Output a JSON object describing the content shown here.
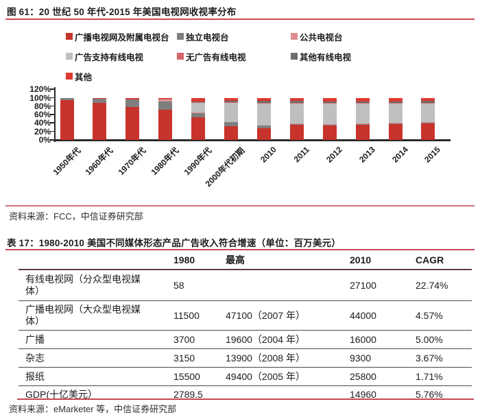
{
  "figure": {
    "source": "资料来源：FCC，中信证券研究部"
  },
  "chart_data": {
    "type": "bar",
    "bar_mode": "stacked",
    "title": "图 61：20 世纪 50 年代-2015 年美国电视网收视率分布",
    "xlabel": "",
    "ylabel": "",
    "unit": "%",
    "ylim": [
      0,
      120
    ],
    "yticks": [
      "0%",
      "20%",
      "40%",
      "60%",
      "80%",
      "100%",
      "120%"
    ],
    "grid": false,
    "legend_position": "top-left",
    "categories": [
      "1950年代",
      "1960年代",
      "1970年代",
      "1980年代",
      "1990年代",
      "2000年代初期",
      "2010",
      "2011",
      "2012",
      "2013",
      "2014",
      "2015"
    ],
    "series": [
      {
        "name": "广播电视网及附属电视台",
        "color": "#C8332C",
        "values": [
          94,
          87,
          78,
          71,
          54,
          33,
          27,
          36,
          35,
          36,
          38,
          40
        ]
      },
      {
        "name": "独立电视台",
        "color": "#7F7F7F",
        "values": [
          6,
          11,
          18,
          20,
          9,
          9,
          7,
          1,
          1,
          1,
          1,
          1
        ]
      },
      {
        "name": "公共电视台",
        "color": "#E08E92",
        "values": [
          0,
          0,
          0,
          3,
          2,
          0,
          0,
          2,
          2,
          2,
          2,
          2
        ]
      },
      {
        "name": "广告支持有线电视",
        "color": "#C0BFBF",
        "values": [
          0,
          0,
          0,
          2,
          22,
          46,
          52,
          47,
          48,
          47,
          45,
          43
        ]
      },
      {
        "name": "无广告有线电视",
        "color": "#D4666B",
        "values": [
          0,
          0,
          0,
          0,
          2,
          2,
          2,
          2,
          2,
          2,
          2,
          2
        ]
      },
      {
        "name": "其他有线电视",
        "color": "#6E6E6E",
        "values": [
          0,
          0,
          0,
          0,
          2,
          3,
          4,
          4,
          3,
          3,
          3,
          4
        ]
      },
      {
        "name": "其他",
        "color": "#DC3A31",
        "values": [
          0,
          2,
          4,
          4,
          9,
          7,
          8,
          8,
          9,
          9,
          9,
          8
        ]
      }
    ]
  },
  "table": {
    "title": "表 17：1980-2010 美国不同媒体形态产品广告收入符合增速（单位：百万美元）",
    "columns": [
      "",
      "1980",
      "最高",
      "2010",
      "CAGR"
    ],
    "rows": [
      [
        "有线电视网（分众型电视媒体）",
        "58",
        "",
        "27100",
        "22.74%"
      ],
      [
        "广播电视网（大众型电视媒体）",
        "11500",
        "47100（2007 年）",
        "44000",
        "4.57%"
      ],
      [
        "广播",
        "3700",
        "19600（2004 年）",
        "16000",
        "5.00%"
      ],
      [
        "杂志",
        "3150",
        "13900（2008 年）",
        "9300",
        "3.67%"
      ],
      [
        "报纸",
        "15500",
        "49400（2005 年）",
        "25800",
        "1.71%"
      ],
      [
        "GDP(十亿美元）",
        "2789.5",
        "",
        "14960",
        "5.76%"
      ]
    ],
    "source": "资料来源：eMarketer 等，中信证券研究部"
  },
  "colors": {
    "rule_red": "#C24A50",
    "axis_black": "#2A2A2A",
    "text": "#1C1C1C",
    "header_border": "#5D3B3D",
    "row_border": "#474747"
  }
}
